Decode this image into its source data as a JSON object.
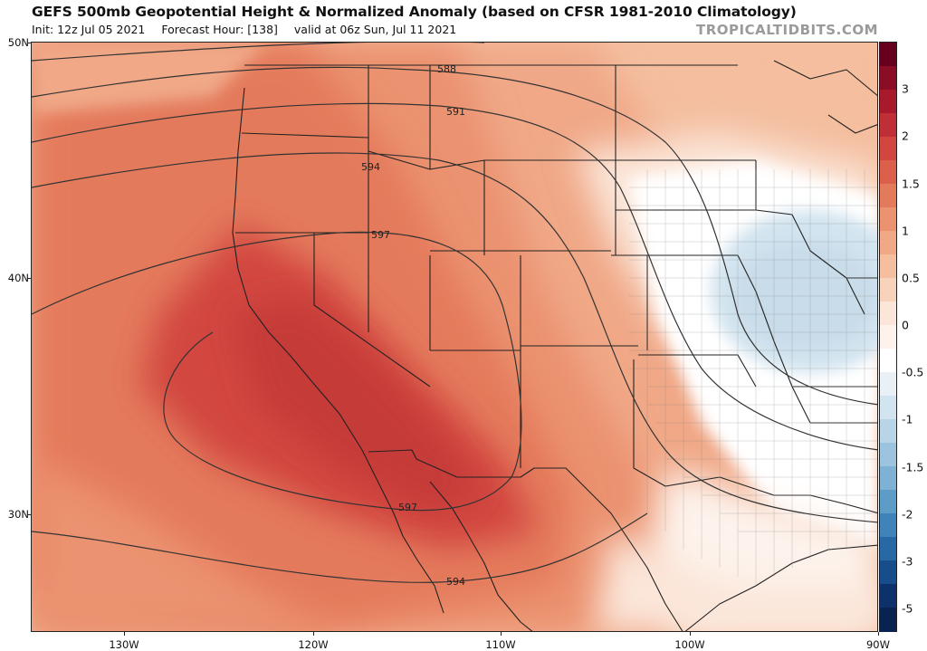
{
  "header": {
    "title": "GEFS 500mb Geopotential Height & Normalized Anomaly (based on CFSR 1981-2010 Climatology)",
    "init": "Init: 12z Jul 05 2021",
    "forecast_hour": "Forecast Hour: [138]",
    "valid": "valid at 06z Sun, Jul 11 2021",
    "watermark": "TROPICALTIDBITS.COM"
  },
  "map": {
    "region": "Western and Central United States",
    "lat_labels": [
      "50N",
      "40N",
      "30N"
    ],
    "lon_labels": [
      "130W",
      "120W",
      "110W",
      "100W",
      "90W"
    ],
    "contours": [
      {
        "label": "588",
        "value": 588
      },
      {
        "label": "591",
        "value": 591
      },
      {
        "label": "594",
        "value": 594
      },
      {
        "label": "597",
        "value": 597
      },
      {
        "label": "597",
        "value": 597
      },
      {
        "label": "594",
        "value": 594
      }
    ],
    "anomaly_features": [
      {
        "name": "ridge-center",
        "anomaly": 2.5
      },
      {
        "name": "trough-center",
        "anomaly": -0.7
      }
    ]
  },
  "colorbar": {
    "labels": [
      "3",
      "2",
      "1.5",
      "1",
      "0.5",
      "0",
      "-0.5",
      "-1",
      "-1.5",
      "-2",
      "-3",
      "-5"
    ],
    "colors": [
      "#67001f",
      "#8b0d25",
      "#a8192c",
      "#bf2f35",
      "#d2463f",
      "#dc5f4b",
      "#e47a5c",
      "#eb9270",
      "#f0a887",
      "#f4be9f",
      "#f8d3bb",
      "#fbe6d9",
      "#fdf3ec",
      "#ffffff",
      "#e9f1f7",
      "#d2e4ef",
      "#b8d5e8",
      "#9cc4df",
      "#7eb1d4",
      "#5e9cc8",
      "#3f83b8",
      "#2868a5",
      "#174d8a",
      "#0d326b",
      "#08234f"
    ]
  }
}
